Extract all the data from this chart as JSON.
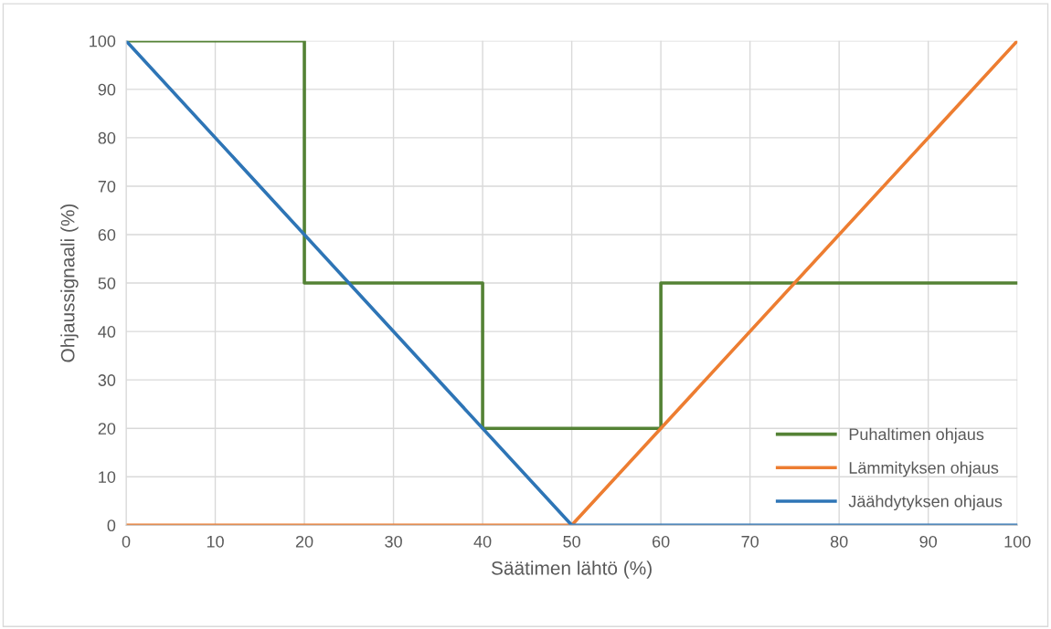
{
  "chart_data": {
    "type": "line",
    "xlabel": "Säätimen lähtö (%)",
    "ylabel": "Ohjaussignaali (%)",
    "xlim": [
      0,
      100
    ],
    "ylim": [
      0,
      100
    ],
    "xticks": [
      0,
      10,
      20,
      30,
      40,
      50,
      60,
      70,
      80,
      90,
      100
    ],
    "yticks": [
      0,
      10,
      20,
      30,
      40,
      50,
      60,
      70,
      80,
      90,
      100
    ],
    "grid": true,
    "legend": "bottom right",
    "marker": "none",
    "line_style": "solid",
    "series": [
      {
        "name": "Puhaltimen ohjaus",
        "color": "#548235",
        "x": [
          0,
          20,
          20,
          40,
          40,
          60,
          60,
          100
        ],
        "values": [
          100,
          100,
          50,
          50,
          20,
          20,
          50,
          50
        ]
      },
      {
        "name": "Lämmityksen ohjaus",
        "color": "#ed7d31",
        "x": [
          0,
          50,
          100
        ],
        "values": [
          0,
          0,
          100
        ]
      },
      {
        "name": "Jäähdytyksen ohjaus",
        "color": "#2e75b6",
        "x": [
          0,
          50,
          100
        ],
        "values": [
          100,
          0,
          0
        ]
      }
    ]
  }
}
